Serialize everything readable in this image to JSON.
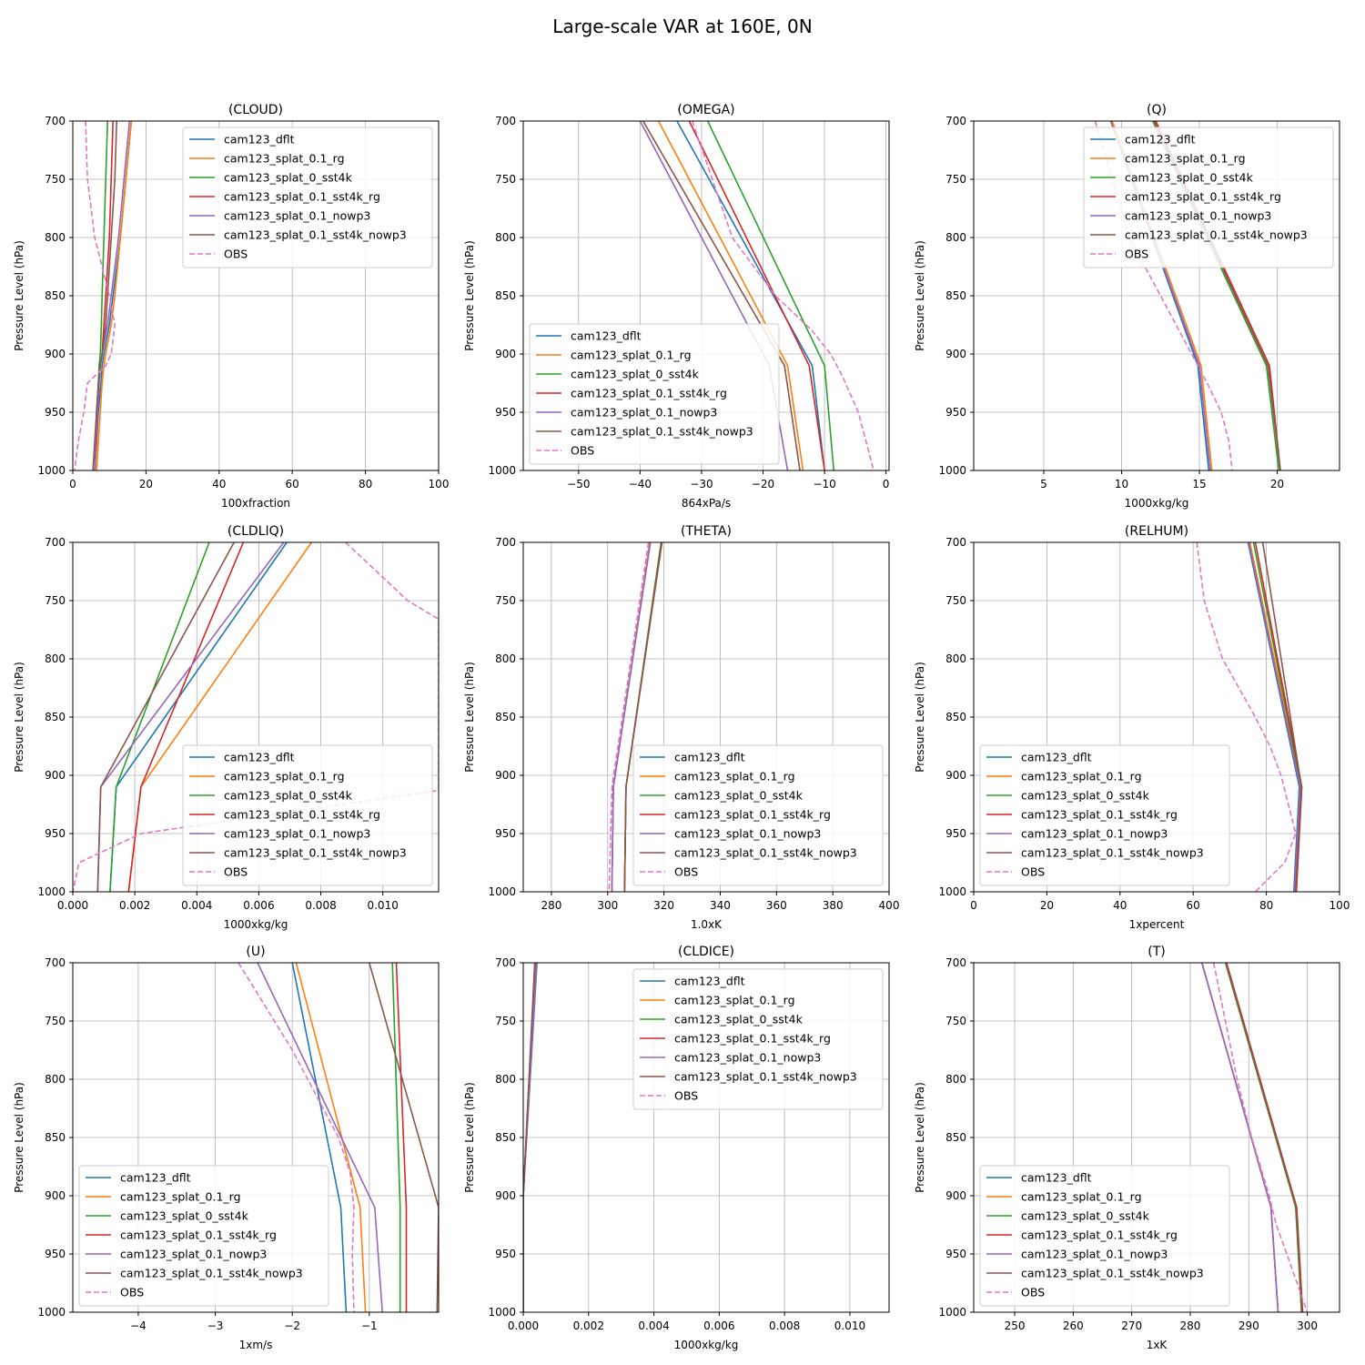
{
  "figure": {
    "title": "Large-scale VAR at 160E, 0N"
  },
  "series_styles": [
    {
      "name": "cam123_dflt",
      "color": "#1f77b4",
      "dash": false
    },
    {
      "name": "cam123_splat_0.1_rg",
      "color": "#ff7f0e",
      "dash": false
    },
    {
      "name": "cam123_splat_0_sst4k",
      "color": "#2ca02c",
      "dash": false
    },
    {
      "name": "cam123_splat_0.1_sst4k_rg",
      "color": "#d62728",
      "dash": false
    },
    {
      "name": "cam123_splat_0.1_nowp3",
      "color": "#9467bd",
      "dash": false
    },
    {
      "name": "cam123_splat_0.1_sst4k_nowp3",
      "color": "#8c564b",
      "dash": false
    },
    {
      "name": "OBS",
      "color": "#e377c2",
      "dash": true
    }
  ],
  "chart_data": [
    {
      "type": "line",
      "title": "(CLOUD)",
      "xlabel": "100xfraction",
      "ylabel": "Pressure Level (hPa)",
      "xlim": [
        0,
        100
      ],
      "ylim": [
        1000,
        700
      ],
      "y_inverted": true,
      "xticks": [
        0,
        20,
        40,
        60,
        80,
        100
      ],
      "xtick_labels": [
        "0",
        "20",
        "40",
        "60",
        "80",
        "100"
      ],
      "yticks": [
        700,
        750,
        800,
        850,
        900,
        950,
        1000
      ],
      "grid": true,
      "legend": "top-right",
      "p": [
        700,
        750,
        800,
        850,
        875,
        900,
        910,
        925,
        950,
        975,
        1000
      ],
      "series": [
        {
          "name": "cam123_dflt",
          "values": [
            16,
            14.5,
            13,
            11,
            10,
            8.5,
            8,
            7.7,
            7,
            6.5,
            6
          ]
        },
        {
          "name": "cam123_splat_0.1_rg",
          "values": [
            16,
            14.5,
            13,
            11.5,
            10.5,
            9,
            8.5,
            8,
            7.5,
            7,
            6.5
          ]
        },
        {
          "name": "cam123_splat_0_sst4k",
          "values": [
            9.5,
            9,
            8.5,
            8,
            7.8,
            7.5,
            7.2,
            7,
            6.5,
            6.2,
            6
          ]
        },
        {
          "name": "cam123_splat_0.1_sst4k_rg",
          "values": [
            11,
            10.5,
            10,
            9,
            8.5,
            8,
            7.5,
            7.2,
            6.8,
            6.5,
            6
          ]
        },
        {
          "name": "cam123_splat_0.1_nowp3",
          "values": [
            15.5,
            14,
            12.5,
            10.5,
            9.5,
            8,
            7.5,
            7.2,
            6.8,
            6.3,
            6
          ]
        },
        {
          "name": "cam123_splat_0.1_sst4k_nowp3",
          "values": [
            12,
            11.5,
            10.5,
            9.5,
            9,
            8,
            7.5,
            7,
            6.5,
            6,
            5.5
          ]
        },
        {
          "name": "OBS",
          "values": [
            3.5,
            4,
            6,
            10,
            11.5,
            10.5,
            9,
            4,
            3,
            1.5,
            0.5
          ]
        }
      ]
    },
    {
      "type": "line",
      "title": "(OMEGA)",
      "xlabel": "864xPa/s",
      "ylabel": "Pressure Level (hPa)",
      "xlim": [
        -59,
        0.5
      ],
      "ylim": [
        1000,
        700
      ],
      "y_inverted": true,
      "xticks": [
        -50,
        -40,
        -30,
        -20,
        -10,
        0
      ],
      "xtick_labels": [
        "−50",
        "−40",
        "−30",
        "−20",
        "−10",
        "0"
      ],
      "yticks": [
        700,
        750,
        800,
        850,
        900,
        950,
        1000
      ],
      "grid": true,
      "legend": "bottom-left",
      "p": [
        700,
        910,
        1000
      ],
      "series": [
        {
          "name": "cam123_dflt",
          "values": [
            -34,
            -12,
            -10
          ]
        },
        {
          "name": "cam123_splat_0.1_rg",
          "values": [
            -37,
            -16,
            -13.5
          ]
        },
        {
          "name": "cam123_splat_0_sst4k",
          "values": [
            -29,
            -10,
            -8.5
          ]
        },
        {
          "name": "cam123_splat_0.1_sst4k_rg",
          "values": [
            -32,
            -12.5,
            -10
          ]
        },
        {
          "name": "cam123_splat_0.1_nowp3",
          "values": [
            -40,
            -19,
            -16
          ]
        },
        {
          "name": "cam123_splat_0.1_sst4k_nowp3",
          "values": [
            -39.5,
            -16.5,
            -14
          ]
        },
        {
          "name": "OBS",
          "values": [
            -31.5,
            -9,
            -2
          ]
        }
      ],
      "series_p_override": {
        "OBS": [
          700,
          800,
          850,
          880,
          900,
          920,
          950,
          980,
          1000
        ]
      },
      "series_values_override": {
        "OBS": [
          -31.5,
          -25,
          -18,
          -12,
          -9,
          -7,
          -4.5,
          -3,
          -2
        ]
      }
    },
    {
      "type": "line",
      "title": "(Q)",
      "xlabel": "1000xkg/kg",
      "ylabel": "Pressure Level (hPa)",
      "xlim": [
        0.5,
        24
      ],
      "ylim": [
        1000,
        700
      ],
      "y_inverted": true,
      "xticks": [
        5,
        10,
        15,
        20
      ],
      "xtick_labels": [
        "5",
        "10",
        "15",
        "20"
      ],
      "yticks": [
        700,
        750,
        800,
        850,
        900,
        950,
        1000
      ],
      "grid": true,
      "legend": "top-right",
      "p": [
        700,
        910,
        1000
      ],
      "series": [
        {
          "name": "cam123_dflt",
          "values": [
            9.3,
            14.9,
            15.6
          ]
        },
        {
          "name": "cam123_splat_0.1_rg",
          "values": [
            9.4,
            15.1,
            15.8
          ]
        },
        {
          "name": "cam123_splat_0_sst4k",
          "values": [
            12,
            19.3,
            20.1
          ]
        },
        {
          "name": "cam123_splat_0.1_sst4k_rg",
          "values": [
            12.2,
            19.5,
            20.2
          ]
        },
        {
          "name": "cam123_splat_0.1_nowp3",
          "values": [
            9.3,
            15,
            15.7
          ]
        },
        {
          "name": "cam123_splat_0.1_sst4k_nowp3",
          "values": [
            12.1,
            19.4,
            20.2
          ]
        },
        {
          "name": "OBS",
          "values": [
            8.3,
            15,
            17.1
          ]
        }
      ],
      "series_p_override": {
        "OBS": [
          700,
          800,
          850,
          900,
          925,
          950,
          975,
          1000
        ]
      },
      "series_values_override": {
        "OBS": [
          8.3,
          10.5,
          12.5,
          14.5,
          15.5,
          16.4,
          16.9,
          17.1
        ]
      }
    },
    {
      "type": "line",
      "title": "(CLDLIQ)",
      "xlabel": "1000xkg/kg",
      "ylabel": "Pressure Level (hPa)",
      "xlim": [
        0,
        0.0118
      ],
      "ylim": [
        1000,
        700
      ],
      "y_inverted": true,
      "xticks": [
        0,
        0.002,
        0.004,
        0.006,
        0.008,
        0.01
      ],
      "xtick_labels": [
        "0.000",
        "0.002",
        "0.004",
        "0.006",
        "0.008",
        "0.010"
      ],
      "yticks": [
        700,
        750,
        800,
        850,
        900,
        950,
        1000
      ],
      "grid": true,
      "legend": "bottom-right",
      "p": [
        700,
        910,
        1000
      ],
      "series": [
        {
          "name": "cam123_dflt",
          "values": [
            0.0069,
            0.0014,
            0.0012
          ]
        },
        {
          "name": "cam123_splat_0.1_rg",
          "values": [
            0.0077,
            0.0022,
            0.0018
          ]
        },
        {
          "name": "cam123_splat_0_sst4k",
          "values": [
            0.0044,
            0.0014,
            0.0012
          ]
        },
        {
          "name": "cam123_splat_0.1_sst4k_rg",
          "values": [
            0.0055,
            0.0022,
            0.0018
          ]
        },
        {
          "name": "cam123_splat_0.1_nowp3",
          "values": [
            0.0068,
            0.0009,
            0.0008
          ]
        },
        {
          "name": "cam123_splat_0.1_sst4k_nowp3",
          "values": [
            0.0052,
            0.0009,
            0.0008
          ]
        },
        {
          "name": "OBS",
          "values": [
            0.0088,
            0.0118,
            0.0
          ]
        }
      ],
      "series_p_override": {
        "OBS": [
          700,
          750,
          766,
          913,
          950,
          975,
          1000
        ]
      },
      "series_values_override": {
        "OBS": [
          0.0088,
          0.0108,
          0.0118,
          0.0118,
          0.0022,
          0.0002,
          0.0
        ]
      }
    },
    {
      "type": "line",
      "title": "(THETA)",
      "xlabel": "1.0xK",
      "ylabel": "Pressure Level (hPa)",
      "xlim": [
        270,
        400
      ],
      "ylim": [
        1000,
        700
      ],
      "y_inverted": true,
      "xticks": [
        280,
        300,
        320,
        340,
        360,
        380,
        400
      ],
      "xtick_labels": [
        "280",
        "300",
        "320",
        "340",
        "360",
        "380",
        "400"
      ],
      "yticks": [
        700,
        750,
        800,
        850,
        900,
        950,
        1000
      ],
      "grid": true,
      "legend": "bottom-right",
      "p": [
        700,
        910,
        1000
      ],
      "series": [
        {
          "name": "cam123_dflt",
          "values": [
            315,
            302,
            301.5
          ]
        },
        {
          "name": "cam123_splat_0.1_rg",
          "values": [
            315,
            302,
            301.5
          ]
        },
        {
          "name": "cam123_splat_0_sst4k",
          "values": [
            319,
            306.5,
            306
          ]
        },
        {
          "name": "cam123_splat_0.1_sst4k_rg",
          "values": [
            319.2,
            306.5,
            306
          ]
        },
        {
          "name": "cam123_splat_0.1_nowp3",
          "values": [
            315.2,
            302,
            301.5
          ]
        },
        {
          "name": "cam123_splat_0.1_sst4k_nowp3",
          "values": [
            319.3,
            306.5,
            306
          ]
        },
        {
          "name": "OBS",
          "values": [
            314.5,
            301.5,
            300.5
          ]
        }
      ]
    },
    {
      "type": "line",
      "title": "(RELHUM)",
      "xlabel": "1xpercent",
      "ylabel": "Pressure Level (hPa)",
      "xlim": [
        0,
        100
      ],
      "ylim": [
        1000,
        700
      ],
      "y_inverted": true,
      "xticks": [
        0,
        20,
        40,
        60,
        80,
        100
      ],
      "xtick_labels": [
        "0",
        "20",
        "40",
        "60",
        "80",
        "100"
      ],
      "yticks": [
        700,
        750,
        800,
        850,
        900,
        950,
        1000
      ],
      "grid": true,
      "legend": "bottom-left",
      "p": [
        700,
        910,
        1000
      ],
      "series": [
        {
          "name": "cam123_dflt",
          "values": [
            75,
            89,
            87.5
          ]
        },
        {
          "name": "cam123_splat_0.1_rg",
          "values": [
            75.5,
            89.5,
            88
          ]
        },
        {
          "name": "cam123_splat_0_sst4k",
          "values": [
            76.5,
            89.5,
            88
          ]
        },
        {
          "name": "cam123_splat_0.1_sst4k_rg",
          "values": [
            77,
            89.7,
            88.2
          ]
        },
        {
          "name": "cam123_splat_0.1_nowp3",
          "values": [
            75.2,
            89.2,
            87.7
          ]
        },
        {
          "name": "cam123_splat_0.1_sst4k_nowp3",
          "values": [
            79,
            89.6,
            88
          ]
        },
        {
          "name": "OBS",
          "values": [
            61,
            84,
            77
          ]
        }
      ],
      "series_p_override": {
        "OBS": [
          700,
          750,
          800,
          850,
          875,
          900,
          950,
          975,
          1000
        ]
      },
      "series_values_override": {
        "OBS": [
          61,
          63,
          68,
          77,
          81,
          84,
          88,
          85,
          77
        ]
      }
    },
    {
      "type": "line",
      "title": "(U)",
      "xlabel": "1xm/s",
      "ylabel": "Pressure Level (hPa)",
      "xlim": [
        -4.85,
        -0.1
      ],
      "ylim": [
        1000,
        700
      ],
      "y_inverted": true,
      "xticks": [
        -4,
        -3,
        -2,
        -1
      ],
      "xtick_labels": [
        "−4",
        "−3",
        "−2",
        "−1"
      ],
      "yticks": [
        700,
        750,
        800,
        850,
        900,
        950,
        1000
      ],
      "grid": true,
      "legend": "bottom-left",
      "p": [
        700,
        910,
        1000
      ],
      "series": [
        {
          "name": "cam123_dflt",
          "values": [
            -2.0,
            -1.37,
            -1.3
          ]
        },
        {
          "name": "cam123_splat_0.1_rg",
          "values": [
            -1.95,
            -1.12,
            -1.05
          ]
        },
        {
          "name": "cam123_splat_0_sst4k",
          "values": [
            -0.7,
            -0.6,
            -0.6
          ]
        },
        {
          "name": "cam123_splat_0.1_sst4k_rg",
          "values": [
            -0.65,
            -0.52,
            -0.52
          ]
        },
        {
          "name": "cam123_splat_0.1_nowp3",
          "values": [
            -2.45,
            -0.93,
            -0.83
          ]
        },
        {
          "name": "cam123_splat_0.1_sst4k_nowp3",
          "values": [
            -1.0,
            -0.1,
            -0.12
          ]
        },
        {
          "name": "OBS",
          "values": [
            -2.7,
            -1.2,
            -1.2
          ]
        }
      ],
      "series_p_override": {
        "OBS": [
          700,
          775,
          850,
          880,
          910,
          950,
          1000
        ]
      },
      "series_values_override": {
        "OBS": [
          -2.7,
          -2.0,
          -1.4,
          -1.25,
          -1.2,
          -1.22,
          -1.2
        ]
      }
    },
    {
      "type": "line",
      "title": "(CLDICE)",
      "xlabel": "1000xkg/kg",
      "ylabel": "Pressure Level (hPa)",
      "xlim": [
        0,
        0.0112
      ],
      "ylim": [
        1000,
        700
      ],
      "y_inverted": true,
      "xticks": [
        0,
        0.002,
        0.004,
        0.006,
        0.008,
        0.01
      ],
      "xtick_labels": [
        "0.000",
        "0.002",
        "0.004",
        "0.006",
        "0.008",
        "0.010"
      ],
      "yticks": [
        700,
        750,
        800,
        850,
        900,
        950,
        1000
      ],
      "grid": true,
      "legend": "top-right",
      "p": [
        700,
        900,
        1000
      ],
      "series": [
        {
          "name": "cam123_dflt",
          "values": [
            0.00042,
            0.0,
            0.0
          ]
        },
        {
          "name": "cam123_splat_0.1_rg",
          "values": [
            0.0004,
            0.0,
            0.0
          ]
        },
        {
          "name": "cam123_splat_0_sst4k",
          "values": [
            0.00038,
            0.0,
            0.0
          ]
        },
        {
          "name": "cam123_splat_0.1_sst4k_rg",
          "values": [
            0.00036,
            0.0,
            0.0
          ]
        },
        {
          "name": "cam123_splat_0.1_nowp3",
          "values": [
            0.00041,
            0.0,
            0.0
          ]
        },
        {
          "name": "cam123_splat_0.1_sst4k_nowp3",
          "values": [
            0.00035,
            0.0,
            0.0
          ]
        },
        {
          "name": "OBS",
          "values": [
            null,
            null,
            null
          ]
        }
      ]
    },
    {
      "type": "line",
      "title": "(T)",
      "xlabel": "1xK",
      "ylabel": "Pressure Level (hPa)",
      "xlim": [
        243,
        305.5
      ],
      "ylim": [
        1000,
        700
      ],
      "y_inverted": true,
      "xticks": [
        250,
        260,
        270,
        280,
        290,
        300
      ],
      "xtick_labels": [
        "250",
        "260",
        "270",
        "280",
        "290",
        "300"
      ],
      "yticks": [
        700,
        750,
        800,
        850,
        900,
        950,
        1000
      ],
      "grid": true,
      "legend": "bottom-left",
      "p": [
        700,
        910,
        1000
      ],
      "series": [
        {
          "name": "cam123_dflt",
          "values": [
            282,
            293.8,
            295
          ]
        },
        {
          "name": "cam123_splat_0.1_rg",
          "values": [
            282,
            293.8,
            295
          ]
        },
        {
          "name": "cam123_splat_0_sst4k",
          "values": [
            286,
            298,
            299
          ]
        },
        {
          "name": "cam123_splat_0.1_sst4k_rg",
          "values": [
            286.2,
            298.2,
            299.2
          ]
        },
        {
          "name": "cam123_splat_0.1_nowp3",
          "values": [
            282,
            293.8,
            295
          ]
        },
        {
          "name": "cam123_splat_0.1_sst4k_nowp3",
          "values": [
            286.1,
            298.1,
            299.1
          ]
        },
        {
          "name": "OBS",
          "values": [
            284,
            294,
            300
          ]
        }
      ],
      "series_p_override": {
        "OBS": [
          700,
          800,
          850,
          900,
          925,
          950,
          1000
        ]
      },
      "series_values_override": {
        "OBS": [
          284,
          288,
          290.5,
          293.5,
          294.7,
          296.5,
          300
        ]
      }
    }
  ]
}
